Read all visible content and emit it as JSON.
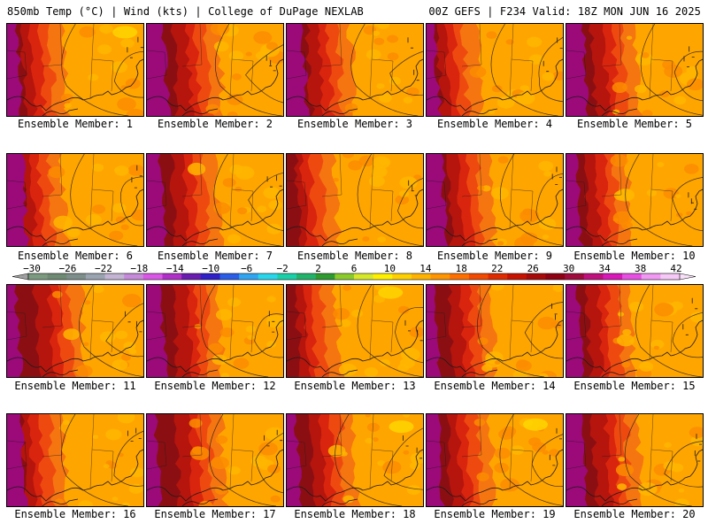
{
  "header": {
    "left": "850mb Temp (°C) | Wind (kts) | College of DuPage NEXLAB",
    "right": "00Z GEFS | F234 Valid: 18Z MON JUN 16 2025"
  },
  "member_label_prefix": "Ensemble Member: ",
  "members": [
    "1",
    "2",
    "3",
    "4",
    "5",
    "6",
    "7",
    "8",
    "9",
    "10",
    "11",
    "12",
    "13",
    "14",
    "15",
    "16",
    "17",
    "18",
    "19",
    "20"
  ],
  "colorbar": {
    "tick_labels": [
      "−30",
      "−26",
      "−22",
      "−18",
      "−14",
      "−10",
      "−6",
      "−2",
      "2",
      "6",
      "10",
      "14",
      "18",
      "22",
      "26",
      "30",
      "34",
      "38",
      "42"
    ],
    "tick_values": [
      -30,
      -26,
      -22,
      -18,
      -14,
      -10,
      -6,
      -2,
      2,
      6,
      10,
      14,
      18,
      22,
      26,
      30,
      34,
      38,
      42
    ],
    "colors": [
      "#7c9a80",
      "#6e8a72",
      "#7e8e8a",
      "#9aa3b0",
      "#c2b4d2",
      "#c58ad8",
      "#d957e6",
      "#b02fc9",
      "#6a1bb0",
      "#2f20c8",
      "#2b5ee8",
      "#2fa5f2",
      "#28d6ec",
      "#1ad0a8",
      "#22b36a",
      "#2e9b2e",
      "#8acb2a",
      "#d6e82a",
      "#fff000",
      "#ffd000",
      "#ffb300",
      "#ff9500",
      "#ff6f00",
      "#f24a00",
      "#e02b00",
      "#c81200",
      "#a80a0a",
      "#8e0012",
      "#a00a3c",
      "#c0107e",
      "#d818b8",
      "#e64fe2",
      "#f199f2",
      "#f6c8f6"
    ]
  },
  "map_palette": {
    "purple": "#9c0a7a",
    "maroon": "#8b0f12",
    "deep_red": "#b5150d",
    "red": "#d9250e",
    "red_orange": "#ee4a10",
    "dark_orange": "#f57510",
    "orange": "#fb8c00",
    "light_orange": "#ffa500",
    "amber": "#ffb600",
    "yellow": "#ffd800",
    "outline": "#1a1a1a"
  }
}
